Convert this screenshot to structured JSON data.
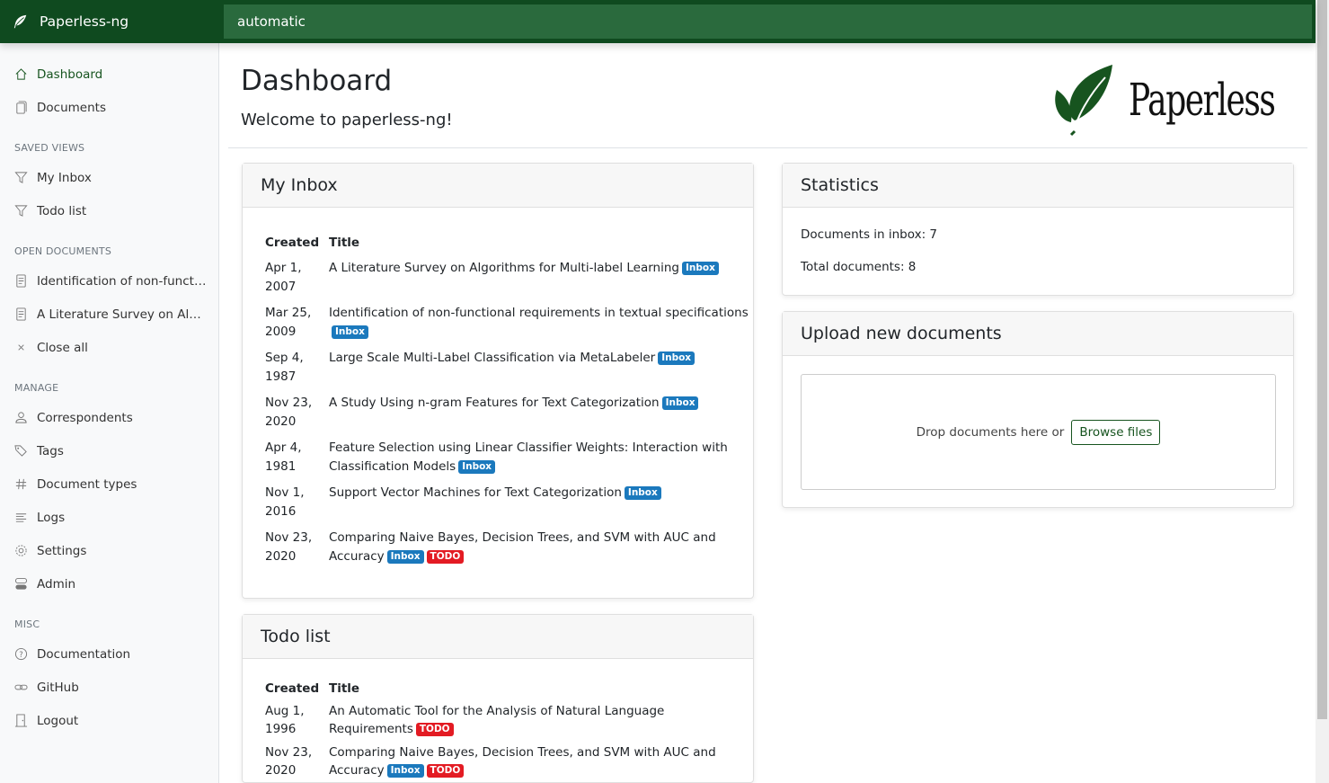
{
  "app": {
    "name": "Paperless-ng",
    "search_value": "automatic"
  },
  "sidebar": {
    "main": [
      {
        "label": "Dashboard",
        "icon": "house-icon",
        "active": true
      },
      {
        "label": "Documents",
        "icon": "files-icon"
      }
    ],
    "sections": [
      {
        "title": "Saved views",
        "items": [
          {
            "label": "My Inbox",
            "icon": "funnel-icon"
          },
          {
            "label": "Todo list",
            "icon": "funnel-icon"
          }
        ]
      },
      {
        "title": "Open documents",
        "items": [
          {
            "label": "Identification of non-functional requirements in textual specifications",
            "icon": "file-text-icon"
          },
          {
            "label": "A Literature Survey on Algorithms for Multi-label Learning",
            "icon": "file-text-icon"
          },
          {
            "label": "Close all",
            "icon": "x-icon"
          }
        ]
      },
      {
        "title": "Manage",
        "items": [
          {
            "label": "Correspondents",
            "icon": "person-icon"
          },
          {
            "label": "Tags",
            "icon": "tags-icon"
          },
          {
            "label": "Document types",
            "icon": "hash-icon"
          },
          {
            "label": "Logs",
            "icon": "text-left-icon"
          },
          {
            "label": "Settings",
            "icon": "gear-icon"
          },
          {
            "label": "Admin",
            "icon": "toggles-icon"
          }
        ]
      },
      {
        "title": "Misc",
        "items": [
          {
            "label": "Documentation",
            "icon": "question-circle-icon"
          },
          {
            "label": "GitHub",
            "icon": "link-icon"
          },
          {
            "label": "Logout",
            "icon": "door-icon"
          }
        ]
      }
    ]
  },
  "header": {
    "title": "Dashboard",
    "subtitle": "Welcome to paperless-ng!",
    "logo_text": "Paperless"
  },
  "tag_colors": {
    "Inbox": "#1b79bd",
    "TODO": "#e31b23"
  },
  "inbox": {
    "title": "My Inbox",
    "col_created": "Created",
    "col_title": "Title",
    "rows": [
      {
        "created": "Apr 1, 2007",
        "title": "A Literature Survey on Algorithms for Multi-label Learning",
        "tags": [
          "Inbox"
        ]
      },
      {
        "created": "Mar 25, 2009",
        "title": "Identification of non-functional requirements in textual specifications",
        "tags": [
          "Inbox"
        ]
      },
      {
        "created": "Sep 4, 1987",
        "title": "Large Scale Multi-Label Classification via MetaLabeler",
        "tags": [
          "Inbox"
        ]
      },
      {
        "created": "Nov 23, 2020",
        "title": "A Study Using n-gram Features for Text Categorization",
        "tags": [
          "Inbox"
        ]
      },
      {
        "created": "Apr 4, 1981",
        "title": "Feature Selection using Linear Classifier Weights: Interaction with Classification Models",
        "tags": [
          "Inbox"
        ]
      },
      {
        "created": "Nov 1, 2016",
        "title": "Support Vector Machines for Text Categorization",
        "tags": [
          "Inbox"
        ]
      },
      {
        "created": "Nov 23, 2020",
        "title": "Comparing Naive Bayes, Decision Trees, and SVM with AUC and Accuracy",
        "tags": [
          "Inbox",
          "TODO"
        ]
      }
    ]
  },
  "todo": {
    "title": "Todo list",
    "col_created": "Created",
    "col_title": "Title",
    "rows": [
      {
        "created": "Aug 1, 1996",
        "title": "An Automatic Tool for the Analysis of Natural Language Requirements",
        "tags": [
          "TODO"
        ]
      },
      {
        "created": "Nov 23, 2020",
        "title": "Comparing Naive Bayes, Decision Trees, and SVM with AUC and Accuracy",
        "tags": [
          "Inbox",
          "TODO"
        ]
      }
    ]
  },
  "statistics": {
    "title": "Statistics",
    "inbox_label": "Documents in inbox: 7",
    "total_label": "Total documents: 8"
  },
  "upload": {
    "title": "Upload new documents",
    "drop_text": "Drop documents here or",
    "browse_label": "Browse files"
  }
}
